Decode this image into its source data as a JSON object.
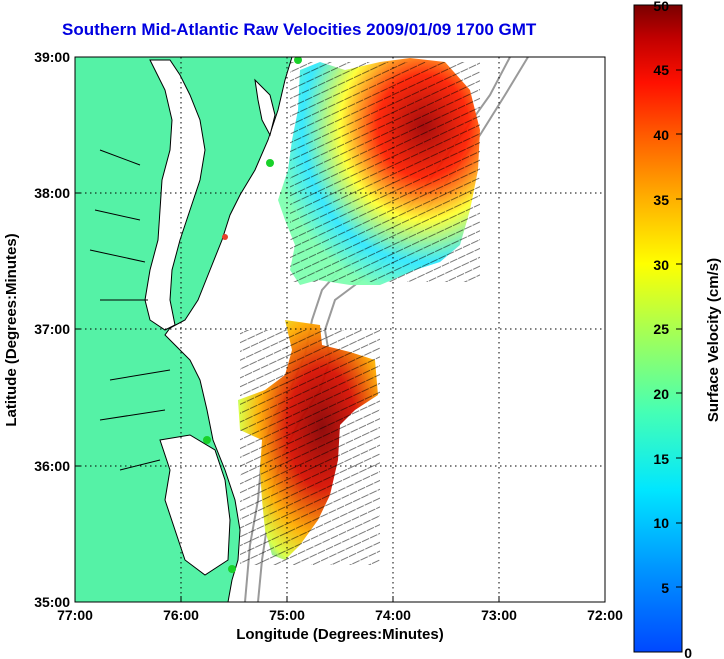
{
  "title": "Southern Mid-Atlantic Raw Velocities 2009/01/09 1700 GMT",
  "axes": {
    "xlabel": "Longitude (Degrees:Minutes)",
    "ylabel": "Latitude (Degrees:Minutes)",
    "xticks": [
      "77:00",
      "76:00",
      "75:00",
      "74:00",
      "73:00",
      "72:00"
    ],
    "yticks": [
      "39:00",
      "38:00",
      "37:00",
      "36:00",
      "35:00"
    ],
    "xlim": [
      -77,
      -72
    ],
    "ylim": [
      35,
      39
    ],
    "grid": "dotted"
  },
  "colorbar": {
    "label": "Surface Velocity (cm/s)",
    "ticks": [
      "0",
      "5",
      "10",
      "15",
      "20",
      "25",
      "30",
      "35",
      "40",
      "45",
      "50"
    ],
    "min": 0,
    "max": 50,
    "colormap": "jet"
  },
  "colors": {
    "land": "#55f2a6",
    "coastline": "#000000",
    "bathymetry": "#9a9a9a",
    "station": "#19d12a",
    "station_alt": "#e8402a"
  }
}
